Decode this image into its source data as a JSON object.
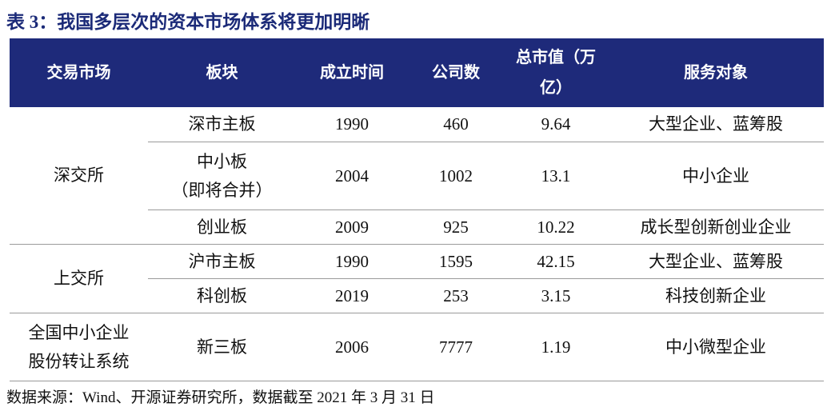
{
  "title": "表 3：我国多层次的资本市场体系将更加明晰",
  "table": {
    "header": [
      "交易市场",
      "板块",
      "成立时间",
      "公司数",
      "总市值（万\n亿）",
      "服务对象"
    ],
    "groups": [
      {
        "market": "深交所",
        "rows": [
          [
            "深市主板",
            "1990",
            "460",
            "9.64",
            "大型企业、蓝筹股"
          ],
          [
            "中小板\n（即将合并）",
            "2004",
            "1002",
            "13.1",
            "中小企业"
          ],
          [
            "创业板",
            "2009",
            "925",
            "10.22",
            "成长型创新创业企业"
          ]
        ]
      },
      {
        "market": "上交所",
        "rows": [
          [
            "沪市主板",
            "1990",
            "1595",
            "42.15",
            "大型企业、蓝筹股"
          ],
          [
            "科创板",
            "2019",
            "253",
            "3.15",
            "科技创新企业"
          ]
        ]
      },
      {
        "market": "全国中小企业\n股份转让系统",
        "rows": [
          [
            "新三板",
            "2006",
            "7777",
            "1.19",
            "中小微型企业"
          ]
        ]
      }
    ]
  },
  "source": "数据来源：Wind、开源证券研究所，数据截至 2021 年 3 月 31 日"
}
